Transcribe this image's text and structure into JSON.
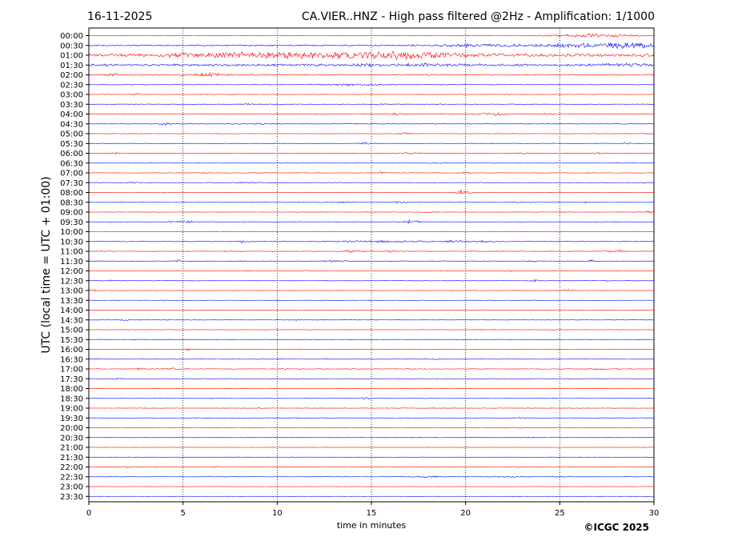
{
  "header": {
    "date": "16-11-2025",
    "title": "CA.VIER..HNZ - High pass filtered @2Hz - Amplification: 1/1000"
  },
  "copyright": "©ICGC 2025",
  "colors": {
    "odd_trace": "#ff0000",
    "even_trace": "#0000ff",
    "grid": "#000000"
  },
  "chart_data": {
    "type": "line",
    "title": "CA.VIER..HNZ - High pass filtered @2Hz - Amplification: 1/1000",
    "xlabel": "time in minutes",
    "ylabel": "UTC (local time = UTC + 01:00)",
    "xlim": [
      0,
      30
    ],
    "x_ticks": [
      0,
      5,
      10,
      15,
      20,
      25,
      30
    ],
    "grid": "vertical dotted at x ticks",
    "y_ticks": [
      "00:00",
      "00:30",
      "01:00",
      "01:30",
      "02:00",
      "02:30",
      "03:00",
      "03:30",
      "04:00",
      "04:30",
      "05:00",
      "05:30",
      "06:00",
      "06:30",
      "07:00",
      "07:30",
      "08:00",
      "08:30",
      "09:00",
      "09:30",
      "10:00",
      "10:30",
      "11:00",
      "11:30",
      "12:00",
      "12:30",
      "13:00",
      "13:30",
      "14:00",
      "14:30",
      "15:00",
      "15:30",
      "16:00",
      "16:30",
      "17:00",
      "17:30",
      "18:00",
      "18:30",
      "19:00",
      "19:30",
      "20:00",
      "20:30",
      "21:00",
      "21:30",
      "22:00",
      "22:30",
      "23:00",
      "23:30"
    ],
    "trace_colors": "alternating red / blue per row (hourly = red, half-hourly = blue)",
    "series": [
      {
        "row": "00:00",
        "noise": 0.4,
        "events": [
          [
            25,
            0.8,
            1.5
          ],
          [
            26.5,
            2.0,
            1.2
          ],
          [
            28.5,
            1.5,
            1.0
          ],
          [
            20.5,
            0.5,
            0.8
          ]
        ]
      },
      {
        "row": "00:30",
        "noise": 1.0,
        "events": [
          [
            27,
            2.5,
            3.0
          ],
          [
            29.5,
            2.5,
            1.5
          ],
          [
            19.5,
            1.0,
            1.5
          ],
          [
            21.5,
            1.2,
            1.5
          ]
        ]
      },
      {
        "row": "01:00",
        "noise": 2.2,
        "events": [
          [
            11.5,
            1.4,
            5.0
          ],
          [
            14,
            1.6,
            6.0
          ],
          [
            17,
            2.6,
            2.0
          ],
          [
            7,
            1.2,
            3.0
          ]
        ]
      },
      {
        "row": "01:30",
        "noise": 1.6,
        "events": [
          [
            17,
            1.0,
            3.0
          ],
          [
            29,
            1.0,
            2.0
          ]
        ]
      },
      {
        "row": "02:00",
        "noise": 0.9,
        "events": [
          [
            6.5,
            2.0,
            0.8
          ],
          [
            1.2,
            2.0,
            0.3
          ]
        ]
      },
      {
        "row": "02:30",
        "noise": 0.5,
        "events": [
          [
            14,
            1.2,
            1.5
          ]
        ]
      },
      {
        "row": "03:00",
        "noise": 0.3,
        "events": [
          [
            2.5,
            1.5,
            0.2
          ],
          [
            6,
            1.0,
            0.2
          ]
        ]
      },
      {
        "row": "03:30",
        "noise": 0.4,
        "events": [
          [
            8.5,
            1.0,
            0.3
          ],
          [
            15.5,
            1.2,
            0.2
          ]
        ]
      },
      {
        "row": "04:00",
        "noise": 0.6,
        "events": [
          [
            21.5,
            2.0,
            0.5
          ],
          [
            16.3,
            1.5,
            0.3
          ],
          [
            24.5,
            1.0,
            0.4
          ]
        ]
      },
      {
        "row": "04:30",
        "noise": 0.5,
        "events": [
          [
            4,
            2.0,
            0.3
          ],
          [
            9,
            2.0,
            0.2
          ]
        ]
      },
      {
        "row": "05:00",
        "noise": 0.4,
        "events": [
          [
            16.8,
            1.5,
            0.3
          ],
          [
            29.5,
            1.0,
            0.3
          ]
        ]
      },
      {
        "row": "05:30",
        "noise": 0.4,
        "events": [
          [
            14.7,
            2.0,
            0.3
          ],
          [
            28.5,
            1.5,
            0.2
          ]
        ]
      },
      {
        "row": "06:00",
        "noise": 0.4,
        "events": [
          [
            17,
            1.0,
            0.8
          ],
          [
            23,
            1.5,
            0.2
          ],
          [
            27,
            1.2,
            0.3
          ],
          [
            1.4,
            1.5,
            0.2
          ]
        ]
      },
      {
        "row": "06:30",
        "noise": 0.3,
        "events": [
          [
            18.5,
            0.8,
            0.4
          ]
        ]
      },
      {
        "row": "07:00",
        "noise": 0.4,
        "events": [
          [
            15.5,
            1.2,
            0.2
          ],
          [
            20,
            1.5,
            0.3
          ]
        ]
      },
      {
        "row": "07:30",
        "noise": 0.4,
        "events": [
          [
            2.3,
            1.5,
            0.2
          ],
          [
            8.5,
            1.0,
            0.6
          ]
        ]
      },
      {
        "row": "08:00",
        "noise": 0.3,
        "events": [
          [
            19.7,
            4.0,
            0.2
          ],
          [
            20.2,
            2.0,
            0.2
          ]
        ]
      },
      {
        "row": "08:30",
        "noise": 0.3,
        "events": [
          [
            13.5,
            1.0,
            0.4
          ],
          [
            16.5,
            1.5,
            0.3
          ],
          [
            23,
            1.2,
            0.4
          ],
          [
            26.3,
            1.5,
            0.2
          ]
        ]
      },
      {
        "row": "09:00",
        "noise": 0.3,
        "events": [
          [
            29.8,
            1.5,
            0.3
          ],
          [
            18,
            0.8,
            0.3
          ]
        ]
      },
      {
        "row": "09:30",
        "noise": 0.4,
        "events": [
          [
            5.2,
            1.5,
            0.5
          ],
          [
            17,
            2.5,
            0.2
          ],
          [
            17.5,
            2.0,
            0.2
          ],
          [
            4.3,
            1.2,
            0.2
          ]
        ]
      },
      {
        "row": "10:00",
        "noise": 0.3,
        "events": []
      },
      {
        "row": "10:30",
        "noise": 0.5,
        "events": [
          [
            15.5,
            1.2,
            2.5
          ],
          [
            8.2,
            2.0,
            0.2
          ],
          [
            19.5,
            1.2,
            0.6
          ],
          [
            21,
            1.0,
            0.5
          ]
        ]
      },
      {
        "row": "11:00",
        "noise": 0.5,
        "events": [
          [
            14,
            1.5,
            0.6
          ],
          [
            28.2,
            2.2,
            0.2
          ],
          [
            16,
            1.5,
            0.3
          ],
          [
            27.5,
            1.5,
            0.3
          ]
        ]
      },
      {
        "row": "11:30",
        "noise": 0.4,
        "events": [
          [
            13,
            1.5,
            0.5
          ],
          [
            4.7,
            1.5,
            0.2
          ],
          [
            23.5,
            1.5,
            0.2
          ],
          [
            26.7,
            1.8,
            0.2
          ],
          [
            8.2,
            1.5,
            0.1
          ]
        ]
      },
      {
        "row": "12:00",
        "noise": 0.3,
        "events": [
          [
            22.2,
            1.5,
            0.2
          ],
          [
            11.5,
            1.0,
            0.2
          ]
        ]
      },
      {
        "row": "12:30",
        "noise": 0.3,
        "events": [
          [
            23.7,
            1.5,
            0.2
          ],
          [
            1.2,
            0.8,
            0.3
          ],
          [
            27.5,
            0.8,
            0.2
          ]
        ]
      },
      {
        "row": "13:00",
        "noise": 0.3,
        "events": [
          [
            25.5,
            1.5,
            0.3
          ],
          [
            0.3,
            1.0,
            0.3
          ]
        ]
      },
      {
        "row": "13:30",
        "noise": 0.3,
        "events": [
          [
            4,
            0.8,
            0.2
          ]
        ]
      },
      {
        "row": "14:00",
        "noise": 0.3,
        "events": [
          [
            20.8,
            1.5,
            0.2
          ],
          [
            29.2,
            0.8,
            0.2
          ]
        ]
      },
      {
        "row": "14:30",
        "noise": 0.3,
        "events": [
          [
            1.9,
            1.2,
            0.3
          ],
          [
            11.1,
            0.8,
            0.2
          ]
        ]
      },
      {
        "row": "15:00",
        "noise": 0.3,
        "events": [
          [
            20.8,
            1.5,
            0.2
          ],
          [
            21.6,
            1.0,
            0.2
          ],
          [
            24.7,
            1.0,
            0.2
          ]
        ]
      },
      {
        "row": "15:30",
        "noise": 0.3,
        "events": [
          [
            18.2,
            0.8,
            0.2
          ]
        ]
      },
      {
        "row": "16:00",
        "noise": 0.3,
        "events": [
          [
            5.3,
            1.5,
            0.2
          ],
          [
            11.2,
            0.8,
            0.2
          ]
        ]
      },
      {
        "row": "16:30",
        "noise": 0.3,
        "events": [
          [
            18.5,
            0.6,
            0.3
          ]
        ]
      },
      {
        "row": "17:00",
        "noise": 0.5,
        "events": [
          [
            4.5,
            1.0,
            0.6
          ],
          [
            2.7,
            1.2,
            0.3
          ],
          [
            10.2,
            1.0,
            0.3
          ],
          [
            27,
            1.0,
            0.5
          ]
        ]
      },
      {
        "row": "17:30",
        "noise": 0.3,
        "events": [
          [
            1.5,
            0.8,
            0.3
          ],
          [
            11,
            0.8,
            0.3
          ]
        ]
      },
      {
        "row": "18:00",
        "noise": 0.3,
        "events": []
      },
      {
        "row": "18:30",
        "noise": 0.3,
        "events": [
          [
            14.7,
            1.5,
            0.3
          ],
          [
            6.5,
            0.8,
            0.2
          ]
        ]
      },
      {
        "row": "19:00",
        "noise": 0.3,
        "events": [
          [
            9.2,
            1.0,
            0.2
          ]
        ]
      },
      {
        "row": "19:30",
        "noise": 0.3,
        "events": [
          [
            8,
            1.0,
            0.2
          ],
          [
            11.2,
            0.8,
            0.3
          ],
          [
            22.8,
            1.0,
            0.2
          ]
        ]
      },
      {
        "row": "20:00",
        "noise": 0.3,
        "events": [
          [
            22.5,
            0.8,
            0.6
          ],
          [
            10,
            1.0,
            0.1
          ]
        ]
      },
      {
        "row": "20:30",
        "noise": 0.3,
        "events": [
          [
            14.3,
            1.0,
            0.2
          ],
          [
            23.5,
            0.8,
            0.6
          ]
        ]
      },
      {
        "row": "21:00",
        "noise": 0.2,
        "events": [
          [
            29.5,
            0.8,
            0.2
          ]
        ]
      },
      {
        "row": "21:30",
        "noise": 0.2,
        "events": []
      },
      {
        "row": "22:00",
        "noise": 0.3,
        "events": [
          [
            2,
            1.0,
            0.2
          ],
          [
            6.7,
            1.0,
            0.2
          ],
          [
            22.8,
            0.8,
            0.2
          ]
        ]
      },
      {
        "row": "22:30",
        "noise": 0.3,
        "events": [
          [
            18,
            1.2,
            0.8
          ],
          [
            22.5,
            0.8,
            1.0
          ],
          [
            25,
            0.8,
            0.5
          ]
        ]
      },
      {
        "row": "23:00",
        "noise": 0.1,
        "events": []
      },
      {
        "row": "23:30",
        "noise": 0.1,
        "events": []
      }
    ]
  }
}
